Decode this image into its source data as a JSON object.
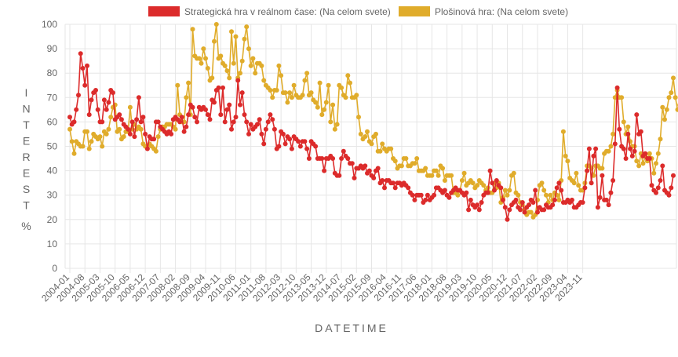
{
  "chart_data": {
    "type": "line",
    "xlabel": "DATETIME",
    "ylabel": "INTEREST %",
    "ylim": [
      0,
      100
    ],
    "yticks": [
      0,
      10,
      20,
      30,
      40,
      50,
      60,
      70,
      80,
      90,
      100
    ],
    "grid": true,
    "legend_position": "top-center",
    "x_start": "2004-01",
    "x_end": "2024-03",
    "x_tick_labels": [
      "2004-01",
      "2004-08",
      "2005-03",
      "2005-10",
      "2006-05",
      "2006-12",
      "2007-07",
      "2008-02",
      "2008-09",
      "2009-04",
      "2009-11",
      "2010-06",
      "2011-01",
      "2011-08",
      "2012-03",
      "2012-10",
      "2013-05",
      "2013-12",
      "2014-07",
      "2015-02",
      "2015-09",
      "2016-04",
      "2016-11",
      "2017-06",
      "2018-01",
      "2018-08",
      "2019-03",
      "2019-10",
      "2020-05",
      "2020-12",
      "2021-07",
      "2022-02",
      "2022-09",
      "2023-04",
      "2023-11"
    ],
    "series": [
      {
        "name": "Strategická hra v reálnom čase: (Na celom svete)",
        "color": "#dc2b2b",
        "values": [
          62,
          59,
          60,
          65,
          71,
          88,
          82,
          75,
          83,
          63,
          69,
          72,
          73,
          65,
          60,
          60,
          69,
          65,
          68,
          73,
          72,
          61,
          62,
          63,
          61,
          59,
          58,
          57,
          55,
          60,
          54,
          61,
          70,
          60,
          62,
          55,
          49,
          54,
          53,
          53,
          60,
          60,
          58,
          57,
          56,
          55,
          56,
          55,
          61,
          62,
          61,
          60,
          62,
          56,
          58,
          63,
          67,
          66,
          62,
          60,
          66,
          65,
          66,
          65,
          63,
          61,
          69,
          68,
          73,
          74,
          63,
          74,
          60,
          65,
          67,
          57,
          60,
          62,
          77,
          67,
          72,
          63,
          60,
          55,
          59,
          57,
          58,
          59,
          61,
          55,
          51,
          57,
          60,
          63,
          61,
          57,
          49,
          50,
          56,
          55,
          51,
          54,
          53,
          49,
          54,
          53,
          52,
          50,
          52,
          52,
          49,
          45,
          52,
          51,
          50,
          45,
          45,
          45,
          40,
          45,
          45,
          46,
          45,
          39,
          38,
          38,
          45,
          48,
          46,
          45,
          43,
          43,
          37,
          41,
          41,
          42,
          41,
          42,
          39,
          40,
          38,
          37,
          40,
          41,
          35,
          36,
          33,
          36,
          36,
          35,
          35,
          33,
          35,
          35,
          34,
          35,
          34,
          33,
          31,
          30,
          28,
          30,
          30,
          30,
          27,
          28,
          30,
          28,
          29,
          30,
          33,
          33,
          32,
          31,
          32,
          30,
          29,
          31,
          32,
          33,
          32,
          32,
          31,
          30,
          31,
          24,
          28,
          26,
          25,
          26,
          24,
          27,
          30,
          31,
          31,
          40,
          35,
          32,
          36,
          34,
          33,
          28,
          25,
          20,
          24,
          26,
          27,
          28,
          25,
          24,
          27,
          23,
          25,
          26,
          28,
          27,
          32,
          23,
          25,
          24,
          24,
          26,
          25,
          25,
          26,
          28,
          33,
          35,
          32,
          27,
          27,
          28,
          27,
          28,
          25,
          25,
          26,
          27,
          27,
          33,
          40,
          49,
          35,
          46,
          49,
          25,
          29,
          38,
          28,
          28,
          26,
          31,
          36,
          51,
          74,
          57,
          50,
          49,
          45,
          55,
          49,
          46,
          48,
          63,
          55,
          56,
          46,
          47,
          45,
          45,
          34,
          32,
          31,
          33,
          36,
          42,
          32,
          31,
          30,
          33,
          38
        ]
      },
      {
        "name": "Plošinová hra: (Na celom svete)",
        "color": "#e0ac2b",
        "values": [
          57,
          52,
          47,
          52,
          51,
          50,
          50,
          56,
          56,
          49,
          52,
          55,
          54,
          53,
          54,
          50,
          56,
          55,
          57,
          62,
          66,
          67,
          56,
          57,
          53,
          54,
          56,
          56,
          66,
          57,
          59,
          57,
          58,
          57,
          51,
          50,
          50,
          51,
          50,
          49,
          48,
          54,
          57,
          58,
          58,
          59,
          59,
          59,
          58,
          57,
          75,
          63,
          60,
          60,
          70,
          76,
          63,
          98,
          87,
          86,
          86,
          84,
          90,
          86,
          82,
          77,
          78,
          93,
          100,
          86,
          87,
          84,
          83,
          81,
          78,
          97,
          84,
          95,
          78,
          80,
          85,
          94,
          99,
          90,
          83,
          86,
          80,
          84,
          84,
          83,
          77,
          75,
          74,
          73,
          70,
          73,
          73,
          83,
          79,
          72,
          72,
          68,
          72,
          70,
          75,
          71,
          70,
          70,
          71,
          77,
          80,
          71,
          72,
          69,
          68,
          66,
          76,
          63,
          65,
          68,
          75,
          60,
          67,
          57,
          59,
          75,
          74,
          71,
          70,
          79,
          76,
          70,
          70,
          71,
          62,
          55,
          53,
          54,
          56,
          52,
          51,
          54,
          55,
          48,
          48,
          51,
          49,
          48,
          49,
          49,
          45,
          44,
          41,
          42,
          42,
          45,
          45,
          42,
          42,
          43,
          43,
          45,
          40,
          40,
          40,
          41,
          38,
          38,
          38,
          40,
          40,
          38,
          42,
          41,
          36,
          38,
          38,
          38,
          31,
          31,
          30,
          32,
          36,
          39,
          34,
          35,
          36,
          35,
          33,
          34,
          36,
          35,
          34,
          32,
          33,
          31,
          31,
          35,
          33,
          35,
          27,
          29,
          32,
          30,
          32,
          38,
          39,
          31,
          30,
          27,
          26,
          24,
          22,
          23,
          23,
          21,
          22,
          28,
          34,
          35,
          32,
          30,
          27,
          30,
          28,
          31,
          30,
          28,
          36,
          56,
          46,
          44,
          37,
          36,
          35,
          39,
          34,
          32,
          32,
          35,
          42,
          42,
          41,
          38,
          42,
          42,
          41,
          41,
          47,
          48,
          48,
          50,
          55,
          70,
          73,
          70,
          70,
          60,
          55,
          58,
          52,
          50,
          50,
          44,
          42,
          47,
          43,
          46,
          44,
          47,
          45,
          39,
          43,
          47,
          53,
          66,
          61,
          65,
          70,
          72,
          78,
          70,
          65,
          67,
          62
        ]
      }
    ]
  }
}
